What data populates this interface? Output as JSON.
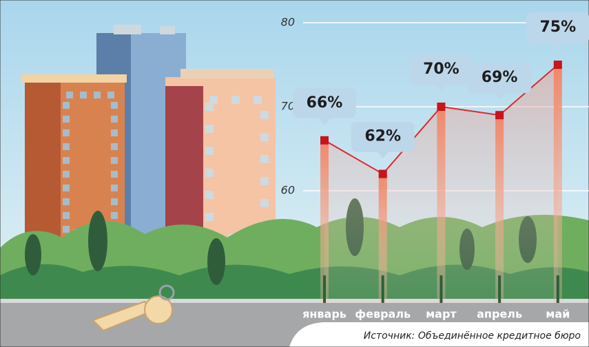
{
  "chart_data": {
    "type": "line",
    "categories": [
      "январь",
      "февраль",
      "март",
      "апрель",
      "май"
    ],
    "values": [
      66,
      62,
      70,
      69,
      75
    ],
    "value_labels": [
      "66%",
      "62%",
      "70%",
      "69%",
      "75%"
    ],
    "color": "#e3262b",
    "ylim": [
      60,
      80
    ],
    "yticks": [
      60,
      70,
      80
    ],
    "grid": true,
    "source": "Источник: Объединённое кредитное бюро"
  }
}
